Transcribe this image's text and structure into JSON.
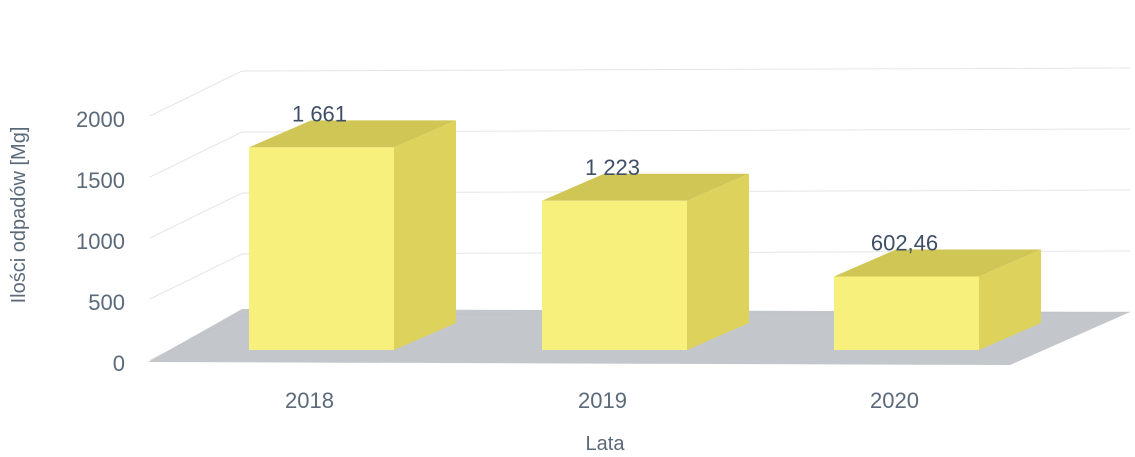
{
  "chart_data": {
    "type": "bar",
    "categories": [
      "2018",
      "2019",
      "2020"
    ],
    "values": [
      1661,
      1223,
      602.46
    ],
    "data_labels": [
      "1 661",
      "1 223",
      "602,46"
    ],
    "xlabel": "Lata",
    "ylabel": "Ilości odpadów [Mg]",
    "ylim": [
      0,
      2000
    ],
    "yticks": [
      "0",
      "500",
      "1000",
      "1500",
      "2000"
    ],
    "style": "3d-column",
    "grid": true,
    "legend": "none",
    "colors": {
      "bar_front": "#f8f07c",
      "bar_side": "#ddd35c",
      "bar_top": "#d0c655",
      "floor": "#b9bdc2",
      "wall_grid": "#e6e6e6",
      "text": "#5b6a7a"
    }
  }
}
